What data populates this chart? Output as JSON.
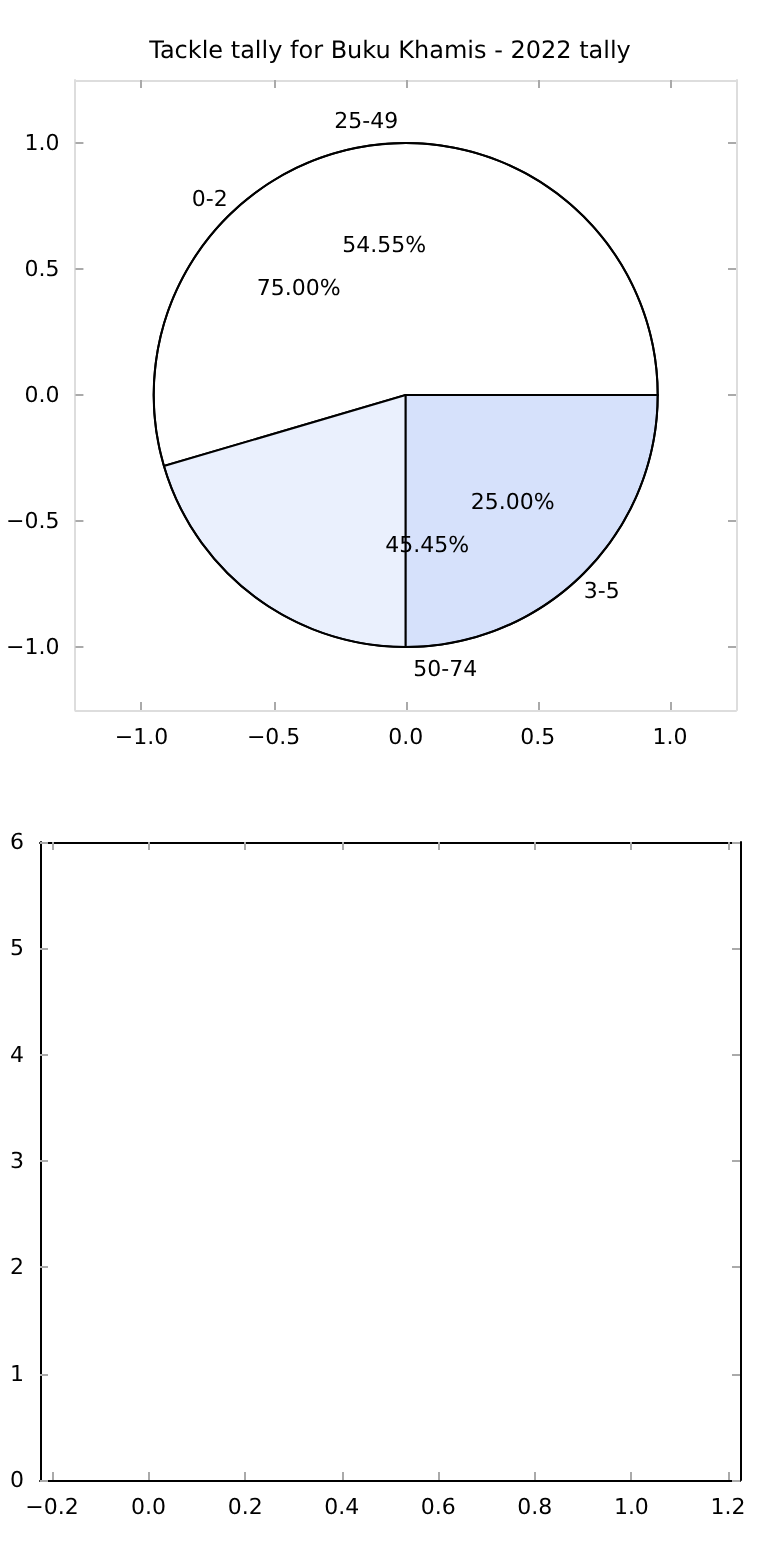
{
  "chart_data": [
    {
      "type": "scatter",
      "title": "Tackle tally for Buku Khamis - 2022 tally",
      "xlim": [
        -1.25,
        1.25
      ],
      "ylim": [
        -1.25,
        1.25
      ],
      "xticks": [
        {
          "value": -1,
          "label": "−1.0"
        },
        -0.5,
        {
          "value": 0,
          "label": "0.0"
        },
        0.5,
        {
          "value": 1,
          "label": "1.0"
        }
      ],
      "yticks": [
        {
          "value": -1,
          "label": "−1.0"
        },
        -0.5,
        {
          "value": 0,
          "label": "0.0"
        },
        0.5,
        {
          "value": 1,
          "label": "1.0"
        }
      ]
    },
    {
      "type": "pie",
      "categories": [
        "0-2",
        "3-5"
      ],
      "values": [
        75,
        25
      ],
      "colors": [
        "#ffffff",
        "#eaf0fd"
      ],
      "value_labels": [
        "75.00%",
        "25.00%"
      ]
    },
    {
      "type": "pie",
      "categories": [
        "25-49",
        "50-74"
      ],
      "values": [
        54.55,
        45.45
      ],
      "colors": [
        "#ffffff",
        "#eaf0fd"
      ],
      "value_labels": [
        "54.55%",
        "45.45%"
      ]
    },
    {
      "type": "scatter",
      "xlim": [
        -0.225,
        1.225
      ],
      "ylim": [
        0,
        6
      ],
      "xticks": [
        -0.2,
        {
          "value": 0,
          "label": "0.0"
        },
        0.2,
        0.4,
        0.6,
        0.8,
        {
          "value": 1,
          "label": "1.0"
        },
        1.2
      ],
      "yticks": [
        0,
        1,
        2,
        3,
        4,
        5,
        6
      ]
    }
  ]
}
